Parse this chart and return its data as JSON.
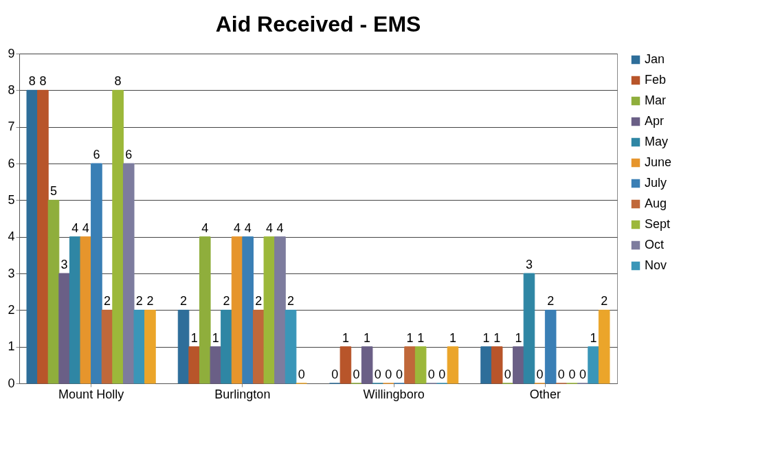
{
  "chart_data": {
    "type": "bar",
    "title": "Aid Received - EMS",
    "categories": [
      "Mount Holly",
      "Burlington",
      "Willingboro",
      "Other"
    ],
    "series": [
      {
        "name": "Jan",
        "color": "#2e6e9a",
        "values": [
          8,
          2,
          0,
          1
        ]
      },
      {
        "name": "Feb",
        "color": "#b8552a",
        "values": [
          8,
          1,
          1,
          1
        ]
      },
      {
        "name": "Mar",
        "color": "#8fae3c",
        "values": [
          5,
          4,
          0,
          0
        ]
      },
      {
        "name": "Apr",
        "color": "#6a5f86",
        "values": [
          3,
          1,
          1,
          1
        ]
      },
      {
        "name": "May",
        "color": "#2f86a4",
        "values": [
          4,
          2,
          0,
          3
        ]
      },
      {
        "name": "June",
        "color": "#e6952c",
        "values": [
          4,
          4,
          0,
          0
        ]
      },
      {
        "name": "July",
        "color": "#3a7fb5",
        "values": [
          6,
          4,
          0,
          2
        ]
      },
      {
        "name": "Aug",
        "color": "#c0683a",
        "values": [
          2,
          2,
          1,
          0
        ]
      },
      {
        "name": "Sept",
        "color": "#9cb83a",
        "values": [
          8,
          4,
          1,
          0
        ]
      },
      {
        "name": "Oct",
        "color": "#7d7c9e",
        "values": [
          6,
          4,
          0,
          0
        ]
      },
      {
        "name": "Nov",
        "color": "#3a96b8",
        "values": [
          2,
          2,
          0,
          1
        ]
      },
      {
        "color": "#eba52a",
        "values": [
          2,
          0,
          1,
          2
        ]
      }
    ],
    "ylim": [
      0,
      9
    ],
    "yticks": [
      0,
      1,
      2,
      3,
      4,
      5,
      6,
      7,
      8,
      9
    ],
    "grid": "y",
    "legend": "right",
    "data_labels": true
  }
}
